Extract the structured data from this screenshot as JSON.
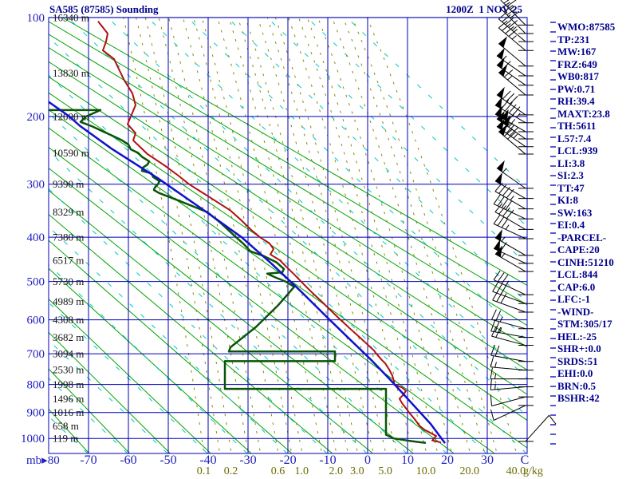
{
  "header": {
    "title": "SA585 (87585) Sounding",
    "date": "1200Z  1 NOV 25"
  },
  "indices": [
    "WMO:87585",
    "TP:231",
    "MW:167",
    "FRZ:649",
    "WB0:817",
    "PW:0.71",
    "RH:39.4",
    "MAXT:23.8",
    "TH:5611",
    "L57:7.4",
    "LCL:939",
    "LI:3.8",
    "SI:2.3",
    "TT:47",
    "KI:8",
    "SW:163",
    "EI:0.4",
    "-PARCEL-",
    "CAPE:20",
    "CINH:51210",
    "LCL:844",
    "CAP:6.0",
    "LFC:-1",
    "-WIND-",
    "STM:305/17",
    "HEL:-25",
    "SHR+:0.0",
    "SRDS:51",
    "EHI:0.0",
    "BRN:0.5",
    "BSHR:42"
  ],
  "chart_data": {
    "type": "line",
    "title": "SA585 (87585) Sounding",
    "subtitle": "1200Z 1 NOV 25",
    "y_axis": {
      "unit": "mb",
      "scale": "stuve (p^0.286)",
      "min": 100,
      "max": 1050,
      "pressure_labels": [
        100,
        200,
        300,
        400,
        500,
        600,
        700,
        800,
        900,
        1000
      ]
    },
    "x_axis": {
      "unit": "C",
      "min": -80,
      "max": 40,
      "tick_step": 10,
      "first_label": "mb▸80",
      "tick_labels": [
        "-70",
        "-60",
        "-50",
        "-40",
        "-30",
        "-20",
        "-10",
        "0",
        "10",
        "20",
        "30"
      ],
      "last_label": "C"
    },
    "height_labels": [
      {
        "p": 100,
        "label": "16340 m"
      },
      {
        "p": 150,
        "label": "13830 m"
      },
      {
        "p": 200,
        "label": "12000 m"
      },
      {
        "p": 250,
        "label": "10590 m"
      },
      {
        "p": 300,
        "label": "9390 m"
      },
      {
        "p": 350,
        "label": "8329 m"
      },
      {
        "p": 400,
        "label": "7380 m"
      },
      {
        "p": 450,
        "label": "6517 m"
      },
      {
        "p": 500,
        "label": "5730 m"
      },
      {
        "p": 550,
        "label": "4989 m"
      },
      {
        "p": 600,
        "label": "4308 m"
      },
      {
        "p": 650,
        "label": "3682 m"
      },
      {
        "p": 700,
        "label": "3094 m"
      },
      {
        "p": 750,
        "label": "2530 m"
      },
      {
        "p": 800,
        "label": "1998 m"
      },
      {
        "p": 850,
        "label": "1496 m"
      },
      {
        "p": 900,
        "label": "1016 m"
      },
      {
        "p": 950,
        "label": "658 m"
      },
      {
        "p": 1000,
        "label": "119 m"
      }
    ],
    "mixing_ratio_labels": [
      0.1,
      0.2,
      0.6,
      1.0,
      2.0,
      3.0,
      5.0,
      10.0,
      20.0,
      40.0
    ],
    "mixing_unit": "g/kg",
    "background_lines": {
      "dry_adiabats_theta_K": [
        190,
        200,
        210,
        220,
        230,
        240,
        250,
        260,
        270,
        280,
        290,
        300,
        310,
        320,
        330,
        340,
        350,
        360,
        370,
        380
      ],
      "moist_adiabat_bottom_x_start": 110,
      "moist_adiabat_bottom_x_step": 50,
      "moist_adiabat_count": 19,
      "mixing_ratios_g_kg": [
        0.1,
        0.15,
        0.2,
        0.3,
        0.4,
        0.6,
        0.8,
        1.0,
        1.5,
        2.0,
        2.5,
        3.0,
        4.0,
        5.0,
        6.0,
        8.0,
        10.0,
        12.0,
        15.0,
        20.0,
        25.0,
        30.0,
        40.0
      ]
    },
    "series": [
      {
        "name": "temperature",
        "color": "#b01010",
        "width": 2,
        "points": [
          [
            103,
            -67.6
          ],
          [
            113,
            -65.2
          ],
          [
            120,
            -65.6
          ],
          [
            128,
            -66.4
          ],
          [
            136,
            -63.6
          ],
          [
            146,
            -62.4
          ],
          [
            158,
            -61.0
          ],
          [
            172,
            -59.0
          ],
          [
            186,
            -58.2
          ],
          [
            200,
            -59.4
          ],
          [
            210,
            -60.2
          ],
          [
            222,
            -58.2
          ],
          [
            232,
            -58.8
          ],
          [
            243,
            -56.8
          ],
          [
            252,
            -55.2
          ],
          [
            270,
            -50.8
          ],
          [
            285,
            -47.6
          ],
          [
            300,
            -44.8
          ],
          [
            320,
            -40.2
          ],
          [
            347,
            -34.4
          ],
          [
            365,
            -31.8
          ],
          [
            385,
            -29.2
          ],
          [
            400,
            -27.0
          ],
          [
            413,
            -24.6
          ],
          [
            425,
            -23.6
          ],
          [
            437,
            -24.4
          ],
          [
            450,
            -22.0
          ],
          [
            465,
            -20.4
          ],
          [
            485,
            -18.2
          ],
          [
            505,
            -16.2
          ],
          [
            525,
            -14.2
          ],
          [
            550,
            -11.6
          ],
          [
            575,
            -9.2
          ],
          [
            600,
            -6.8
          ],
          [
            625,
            -4.4
          ],
          [
            650,
            -2.0
          ],
          [
            672,
            0.0
          ],
          [
            690,
            1.6
          ],
          [
            700,
            2.2
          ],
          [
            720,
            3.6
          ],
          [
            730,
            4.4
          ],
          [
            750,
            5.4
          ],
          [
            770,
            6.2
          ],
          [
            790,
            6.6
          ],
          [
            800,
            6.6
          ],
          [
            810,
            8.6
          ],
          [
            822,
            9.6
          ],
          [
            835,
            9.0
          ],
          [
            850,
            8.0
          ],
          [
            865,
            8.6
          ],
          [
            880,
            9.4
          ],
          [
            900,
            10.4
          ],
          [
            925,
            11.8
          ],
          [
            950,
            13.0
          ],
          [
            965,
            14.2
          ],
          [
            980,
            16.0
          ],
          [
            990,
            17.2
          ],
          [
            1000,
            16.6
          ],
          [
            1008,
            16.2
          ],
          [
            1016,
            18.4
          ]
        ]
      },
      {
        "name": "dewpoint",
        "color": "#0a540a",
        "width": 2.5,
        "points": [
          [
            192,
            -79.9
          ],
          [
            192,
            -67.0
          ],
          [
            200,
            -70.6
          ],
          [
            207,
            -72.0
          ],
          [
            213,
            -69.0
          ],
          [
            219,
            -66.6
          ],
          [
            226,
            -63.8
          ],
          [
            232,
            -61.6
          ],
          [
            238,
            -60.0
          ],
          [
            245,
            -59.4
          ],
          [
            250,
            -57.6
          ],
          [
            256,
            -56.6
          ],
          [
            263,
            -54.8
          ],
          [
            268,
            -55.2
          ],
          [
            273,
            -56.4
          ],
          [
            278,
            -56.6
          ],
          [
            282,
            -54.2
          ],
          [
            288,
            -53.8
          ],
          [
            295,
            -52.2
          ],
          [
            300,
            -52.6
          ],
          [
            306,
            -53.4
          ],
          [
            310,
            -53.6
          ],
          [
            315,
            -52.4
          ],
          [
            330,
            -47.0
          ],
          [
            350,
            -40.2
          ],
          [
            370,
            -37.0
          ],
          [
            400,
            -33.0
          ],
          [
            415,
            -31.0
          ],
          [
            430,
            -29.4
          ],
          [
            440,
            -26.2
          ],
          [
            455,
            -22.8
          ],
          [
            470,
            -21.0
          ],
          [
            478,
            -21.4
          ],
          [
            481,
            -25.2
          ],
          [
            490,
            -23.2
          ],
          [
            500,
            -20.6
          ],
          [
            513,
            -18.4
          ],
          [
            560,
            -22.4
          ],
          [
            620,
            -28.0
          ],
          [
            680,
            -34.4
          ],
          [
            693,
            -34.8
          ],
          [
            693,
            -8.2
          ],
          [
            723,
            -8.2
          ],
          [
            723,
            -35.8
          ],
          [
            815,
            -35.8
          ],
          [
            815,
            4.6
          ],
          [
            985,
            4.6
          ],
          [
            1000,
            6.6
          ],
          [
            1008,
            9.8
          ],
          [
            1014,
            12.6
          ],
          [
            1018,
            14.6
          ]
        ]
      },
      {
        "name": "parcel-wetbulb",
        "color": "#1111cc",
        "width": 2.5,
        "points": [
          [
            182,
            -80.0
          ],
          [
            200,
            -74.8
          ],
          [
            212,
            -72.2
          ],
          [
            244,
            -64.2
          ],
          [
            290,
            -52.6
          ],
          [
            349,
            -40.6
          ],
          [
            400,
            -31.6
          ],
          [
            457,
            -24.2
          ],
          [
            524,
            -16.8
          ],
          [
            599,
            -9.6
          ],
          [
            659,
            -4.2
          ],
          [
            718,
            0.8
          ],
          [
            786,
            5.8
          ],
          [
            862,
            10.8
          ],
          [
            943,
            15.8
          ],
          [
            1019,
            19.4
          ]
        ]
      }
    ],
    "wind_barbs": [
      [
        106,
        315,
        35
      ],
      [
        113,
        315,
        40
      ],
      [
        120,
        310,
        45
      ],
      [
        128,
        310,
        45
      ],
      [
        143,
        310,
        50
      ],
      [
        153,
        305,
        55
      ],
      [
        163,
        305,
        60
      ],
      [
        174,
        310,
        65
      ],
      [
        198,
        305,
        80
      ],
      [
        208,
        300,
        95
      ],
      [
        220,
        300,
        115
      ],
      [
        230,
        305,
        105
      ],
      [
        241,
        305,
        85
      ],
      [
        252,
        310,
        70
      ],
      [
        307,
        305,
        55
      ],
      [
        325,
        300,
        50
      ],
      [
        344,
        300,
        45
      ],
      [
        363,
        295,
        40
      ],
      [
        384,
        300,
        40
      ],
      [
        403,
        295,
        35
      ],
      [
        439,
        300,
        55
      ],
      [
        457,
        295,
        60
      ],
      [
        476,
        300,
        55
      ],
      [
        533,
        295,
        35
      ],
      [
        556,
        290,
        30
      ],
      [
        579,
        290,
        30
      ],
      [
        625,
        285,
        25
      ],
      [
        650,
        280,
        25
      ],
      [
        674,
        285,
        20
      ],
      [
        724,
        280,
        20
      ],
      [
        752,
        275,
        15
      ],
      [
        781,
        270,
        15
      ],
      [
        808,
        265,
        15
      ],
      [
        843,
        255,
        10
      ],
      [
        874,
        245,
        10
      ],
      [
        1012,
        42,
        10
      ]
    ],
    "colors": {
      "grid": "#0000b8",
      "dry_adiabat": "#00a400",
      "moist_adiabat": "#00c8c8",
      "mixing_ratio": "#8a8a00",
      "barb": "#000000",
      "label_blue": "#1f1fbf",
      "label_black": "#141414",
      "label_olive": "#6b6b00",
      "edge_tick_blue": "#2020c0"
    },
    "layout": {
      "grid": true,
      "legend": "none"
    }
  }
}
